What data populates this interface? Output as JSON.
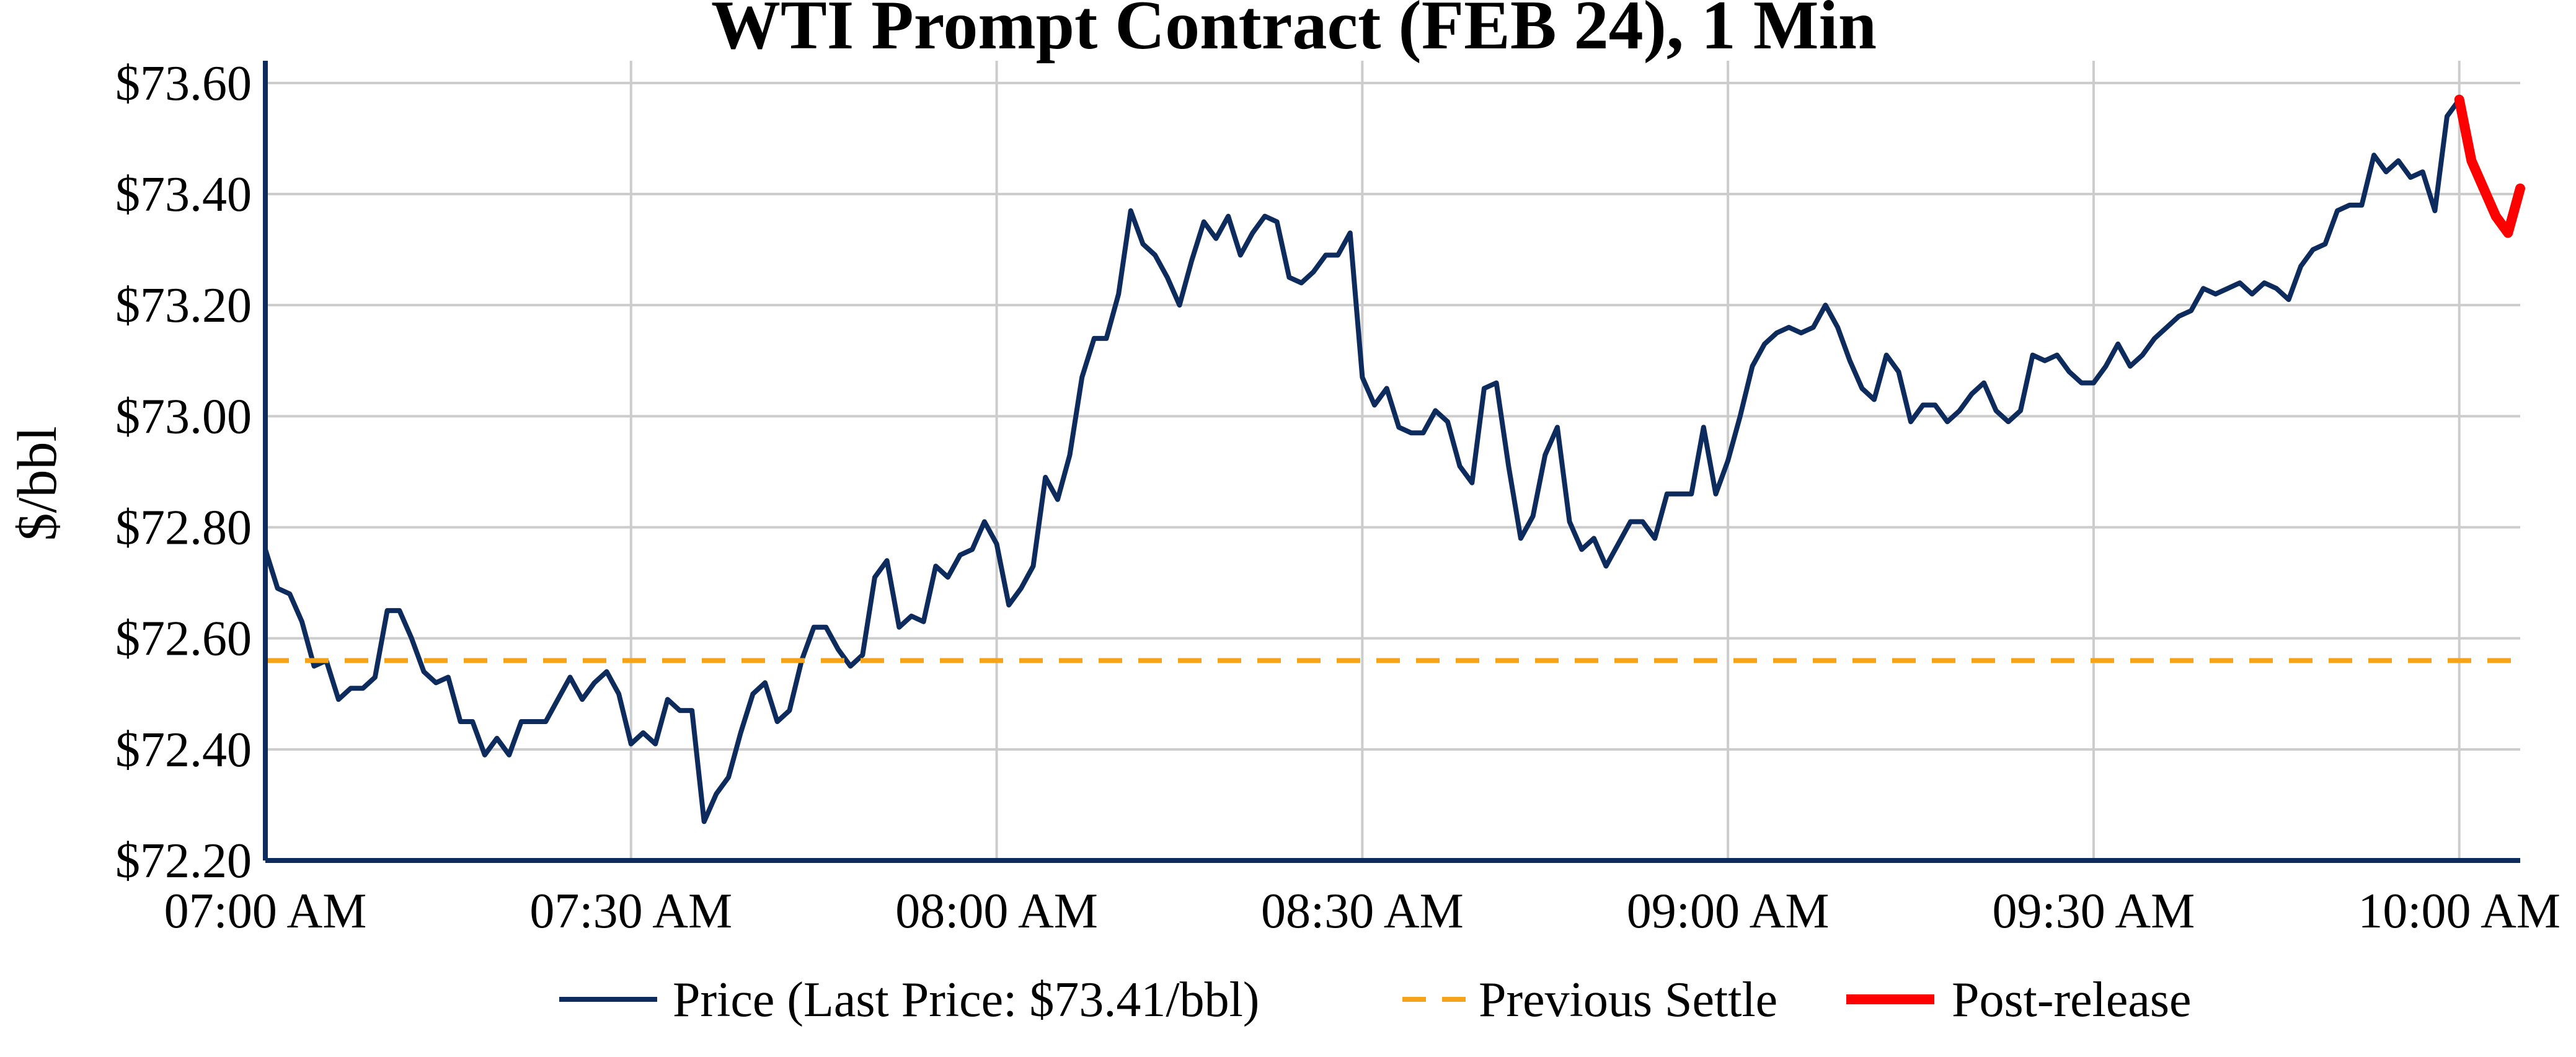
{
  "chart_data": {
    "type": "line",
    "title": "WTI Prompt Contract (FEB 24), 1 Min",
    "xlabel": "",
    "ylabel": "$/bbl",
    "x_tick_labels": [
      "07:00 AM",
      "07:30 AM",
      "08:00 AM",
      "08:30 AM",
      "09:00 AM",
      "09:30 AM",
      "10:00 AM"
    ],
    "x_tick_minutes_after_0700": [
      0,
      30,
      60,
      90,
      120,
      150,
      180
    ],
    "xlim_minutes_after_0700": [
      0,
      185
    ],
    "y_tick_labels": [
      "$72.20",
      "$72.40",
      "$72.60",
      "$72.80",
      "$73.00",
      "$73.20",
      "$73.40",
      "$73.60"
    ],
    "y_ticks": [
      72.2,
      72.4,
      72.6,
      72.8,
      73.0,
      73.2,
      73.4,
      73.6
    ],
    "ylim": [
      72.2,
      73.64
    ],
    "grid": true,
    "legend_position": "bottom",
    "colors": {
      "price": "#0d2b5c",
      "settle": "#f5a31a",
      "post": "#ff0000",
      "grid": "#cccccc",
      "axis": "#0d2b5c"
    },
    "series": [
      {
        "name": "Price (Last Price: $73.41/bbl)",
        "style": "solid",
        "minutes_after_0700": [
          0,
          1,
          2,
          3,
          4,
          5,
          6,
          7,
          8,
          9,
          10,
          11,
          12,
          13,
          14,
          15,
          16,
          17,
          18,
          19,
          20,
          21,
          22,
          23,
          24,
          25,
          26,
          27,
          28,
          29,
          30,
          31,
          32,
          33,
          34,
          35,
          36,
          37,
          38,
          39,
          40,
          41,
          42,
          43,
          44,
          45,
          46,
          47,
          48,
          49,
          50,
          51,
          52,
          53,
          54,
          55,
          56,
          57,
          58,
          59,
          60,
          61,
          62,
          63,
          64,
          65,
          66,
          67,
          68,
          69,
          70,
          71,
          72,
          73,
          74,
          75,
          76,
          77,
          78,
          79,
          80,
          81,
          82,
          83,
          84,
          85,
          86,
          87,
          88,
          89,
          90,
          91,
          92,
          93,
          94,
          95,
          96,
          97,
          98,
          99,
          100,
          101,
          102,
          103,
          104,
          105,
          106,
          107,
          108,
          109,
          110,
          111,
          112,
          113,
          114,
          115,
          116,
          117,
          118,
          119,
          120,
          121,
          122,
          123,
          124,
          125,
          126,
          127,
          128,
          129,
          130,
          131,
          132,
          133,
          134,
          135,
          136,
          137,
          138,
          139,
          140,
          141,
          142,
          143,
          144,
          145,
          146,
          147,
          148,
          149,
          150,
          151,
          152,
          153,
          154,
          155,
          156,
          157,
          158,
          159,
          160,
          161,
          162,
          163,
          164,
          165,
          166,
          167,
          168,
          169,
          170,
          171,
          172,
          173,
          174,
          175,
          176,
          177,
          178,
          179,
          180
        ],
        "values": [
          72.76,
          72.69,
          72.68,
          72.63,
          72.55,
          72.56,
          72.49,
          72.51,
          72.51,
          72.53,
          72.65,
          72.65,
          72.6,
          72.54,
          72.52,
          72.53,
          72.45,
          72.45,
          72.39,
          72.42,
          72.39,
          72.45,
          72.45,
          72.45,
          72.49,
          72.53,
          72.49,
          72.52,
          72.54,
          72.5,
          72.41,
          72.43,
          72.41,
          72.49,
          72.47,
          72.47,
          72.27,
          72.32,
          72.35,
          72.43,
          72.5,
          72.52,
          72.45,
          72.47,
          72.56,
          72.62,
          72.62,
          72.58,
          72.55,
          72.57,
          72.71,
          72.74,
          72.62,
          72.64,
          72.63,
          72.73,
          72.71,
          72.75,
          72.76,
          72.81,
          72.77,
          72.66,
          72.69,
          72.73,
          72.89,
          72.85,
          72.93,
          73.07,
          73.14,
          73.14,
          73.22,
          73.37,
          73.31,
          73.29,
          73.25,
          73.2,
          73.28,
          73.35,
          73.32,
          73.36,
          73.29,
          73.33,
          73.36,
          73.35,
          73.25,
          73.24,
          73.26,
          73.29,
          73.29,
          73.33,
          73.07,
          73.02,
          73.05,
          72.98,
          72.97,
          72.97,
          73.01,
          72.99,
          72.91,
          72.88,
          73.05,
          73.06,
          72.91,
          72.78,
          72.82,
          72.93,
          72.98,
          72.81,
          72.76,
          72.78,
          72.73,
          72.77,
          72.81,
          72.81,
          72.78,
          72.86,
          72.86,
          72.86,
          72.98,
          72.86,
          72.92,
          73.0,
          73.09,
          73.13,
          73.15,
          73.16,
          73.15,
          73.16,
          73.2,
          73.16,
          73.1,
          73.05,
          73.03,
          73.11,
          73.08,
          72.99,
          73.02,
          73.02,
          72.99,
          73.01,
          73.04,
          73.06,
          73.01,
          72.99,
          73.01,
          73.11,
          73.1,
          73.11,
          73.08,
          73.06,
          73.06,
          73.09,
          73.13,
          73.09,
          73.11,
          73.14,
          73.16,
          73.18,
          73.19,
          73.23,
          73.22,
          73.23,
          73.24,
          73.22,
          73.24,
          73.23,
          73.21,
          73.27,
          73.3,
          73.31,
          73.37,
          73.38,
          73.38,
          73.47,
          73.44,
          73.46,
          73.43,
          73.44,
          73.37,
          73.54,
          73.57
        ]
      },
      {
        "name": "Previous Settle",
        "style": "dashed",
        "minutes_after_0700": [
          0,
          185
        ],
        "values": [
          72.56,
          72.56
        ]
      },
      {
        "name": "Post-release",
        "style": "solid-thick",
        "minutes_after_0700": [
          180,
          181,
          182,
          183,
          184,
          185
        ],
        "values": [
          73.57,
          73.46,
          73.41,
          73.36,
          73.33,
          73.41
        ]
      }
    ]
  }
}
